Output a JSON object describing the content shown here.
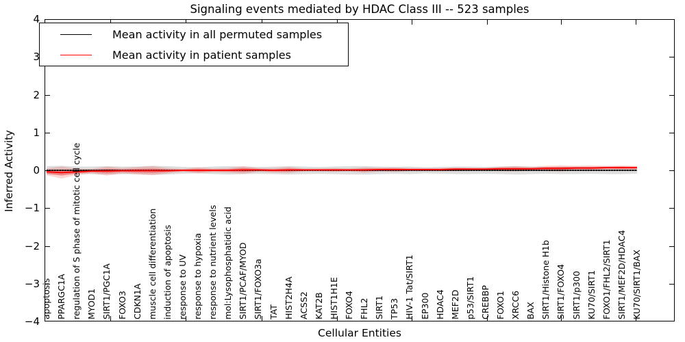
{
  "title": "Signaling events mediated by HDAC Class III -- 523 samples",
  "axes": {
    "xlabel": "Cellular Entities",
    "ylabel": "Inferred Activity",
    "y_tick_labels": [
      "4",
      "3",
      "2",
      "1",
      "0",
      "−1",
      "−2",
      "−3",
      "−4"
    ],
    "y_tick_values": [
      4,
      3,
      2,
      1,
      0,
      -1,
      -2,
      -3,
      -4
    ]
  },
  "legend": {
    "items": [
      {
        "label": "Mean activity in all permuted samples",
        "color": "#000000"
      },
      {
        "label": "Mean activity in patient samples",
        "color": "#ff0000"
      }
    ]
  },
  "chart_data": {
    "type": "line",
    "title": "Signaling events mediated by HDAC Class III -- 523 samples",
    "xlabel": "Cellular Entities",
    "ylabel": "Inferred Activity",
    "ylim": [
      -4,
      4
    ],
    "grid": false,
    "legend_position": "upper left",
    "categories": [
      "apoptosis",
      "PPARGC1A",
      "regulation of S phase of mitotic cell cycle",
      "MYOD1",
      "SIRT1/PGC1A",
      "FOXO3",
      "CDKN1A",
      "muscle cell differentiation",
      "induction of apoptosis",
      "response to UV",
      "response to hypoxia",
      "response to nutrient levels",
      "mol:Lysophosphatidic acid",
      "SIRT1/PCAF/MYOD",
      "SIRT1/FOXO3a",
      "TAT",
      "HIST2H4A",
      "ACSS2",
      "KAT2B",
      "HIST1H1E",
      "FOXO4",
      "FHL2",
      "SIRT1",
      "TP53",
      "HIV-1 Tat/SIRT1",
      "EP300",
      "HDAC4",
      "MEF2D",
      "p53/SIRT1",
      "CREBBP",
      "FOXO1",
      "XRCC6",
      "BAX",
      "SIRT1/Histone H1b",
      "SIRT1/FOXO4",
      "SIRT1/p300",
      "KU70/SIRT1",
      "FOXO1/FHL2/SIRT1",
      "SIRT1/MEF2D/HDAC4",
      "KU70/SIRT1/BAX"
    ],
    "series": [
      {
        "name": "Mean activity in all permuted samples",
        "style": "line-with-band",
        "color": "#000000",
        "band_color": "rgba(0,0,0,0.13)",
        "values": [
          0,
          0,
          0,
          0,
          0,
          0,
          0,
          0,
          0,
          0,
          0,
          0,
          0,
          0,
          0,
          0,
          0,
          0,
          0,
          0,
          0,
          0,
          0,
          0,
          0,
          0,
          0,
          0,
          0,
          0,
          0,
          0,
          0,
          0,
          0,
          0,
          0,
          0,
          0,
          0
        ],
        "band_halfwidth": [
          0.11,
          0.12,
          0.1,
          0.1,
          0.11,
          0.1,
          0.1,
          0.12,
          0.11,
          0.09,
          0.08,
          0.1,
          0.11,
          0.1,
          0.09,
          0.1,
          0.11,
          0.1,
          0.09,
          0.1,
          0.11,
          0.11,
          0.1,
          0.09,
          0.1,
          0.08,
          0.09,
          0.1,
          0.1,
          0.09,
          0.1,
          0.11,
          0.1,
          0.09,
          0.1,
          0.1,
          0.09,
          0.1,
          0.1,
          0.09
        ]
      },
      {
        "name": "Mean activity in patient samples",
        "style": "line-with-band",
        "color": "#ff0000",
        "band_color": "rgba(255,0,0,0.16)",
        "inner_band_color": "rgba(255,0,0,0.30)",
        "values": [
          -0.04,
          -0.06,
          -0.04,
          -0.02,
          -0.02,
          -0.01,
          -0.01,
          -0.01,
          -0.01,
          0.0,
          0.0,
          0.0,
          0.0,
          0.01,
          0.01,
          0.0,
          0.01,
          0.01,
          0.01,
          0.01,
          0.01,
          0.01,
          0.02,
          0.02,
          0.02,
          0.02,
          0.02,
          0.03,
          0.03,
          0.03,
          0.04,
          0.04,
          0.04,
          0.05,
          0.05,
          0.06,
          0.06,
          0.07,
          0.07,
          0.07
        ],
        "band_halfwidth": [
          0.09,
          0.16,
          0.08,
          0.06,
          0.12,
          0.07,
          0.1,
          0.12,
          0.07,
          0.04,
          0.08,
          0.05,
          0.06,
          0.1,
          0.05,
          0.06,
          0.08,
          0.04,
          0.04,
          0.05,
          0.04,
          0.07,
          0.05,
          0.06,
          0.04,
          0.04,
          0.04,
          0.05,
          0.04,
          0.04,
          0.06,
          0.07,
          0.05,
          0.07,
          0.08,
          0.06,
          0.07,
          0.05,
          0.06,
          0.05
        ]
      }
    ],
    "x_tick_indices": [
      4.2,
      9.2,
      14.2,
      19.2,
      24.1,
      29.1,
      34.0,
      38.9
    ]
  }
}
